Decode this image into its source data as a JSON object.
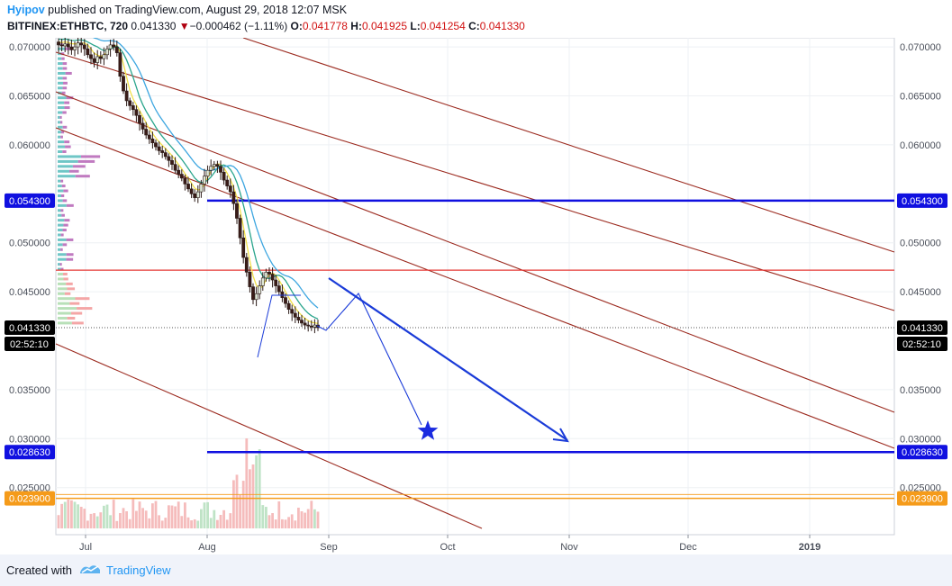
{
  "publish": {
    "author": "Hyipov",
    "text": " published on TradingView.com, August 29, 2018 12:07 MSK"
  },
  "quote": {
    "symbol": "BITFINEX:ETHBTC, 720",
    "last": "0.041330",
    "arrow": "▼",
    "change": "−0.000462 (−1.11%)",
    "open_label": "O:",
    "open": "0.041778",
    "high_label": "H:",
    "high": "0.041925",
    "low_label": "L:",
    "low": "0.041254",
    "close_label": "C:",
    "close": "0.041330"
  },
  "chart_data": {
    "type": "candlestick",
    "symbol": "BITFINEX:ETHBTC",
    "interval": "720",
    "ylim": [
      0.0205,
      0.0713
    ],
    "yticks": [
      "0.070000",
      "0.065000",
      "0.060000",
      "0.050000",
      "0.045000",
      "0.035000",
      "0.030000",
      "0.025000"
    ],
    "xticks": [
      "Jul",
      "Aug",
      "Sep",
      "Oct",
      "Nov",
      "Dec",
      "2019"
    ],
    "price_labels": [
      {
        "value": "0.054300",
        "color": "#1010e0"
      },
      {
        "value": "0.041330",
        "color": "#000000"
      },
      {
        "value": "0.028630",
        "color": "#1010e0"
      },
      {
        "value": "0.023900",
        "color": "#f59b1a"
      }
    ],
    "countdown": "02:52:10",
    "horizontal_levels": [
      {
        "price": 0.0543,
        "color": "#1010e0"
      },
      {
        "price": 0.0472,
        "color": "#e53935"
      },
      {
        "price": 0.02863,
        "color": "#1010e0"
      },
      {
        "price": 0.0239,
        "color": "#f59b1a"
      }
    ],
    "close_series": [
      0.0702,
      0.0701,
      0.0703,
      0.07,
      0.0697,
      0.07,
      0.0704,
      0.0702,
      0.0698,
      0.0692,
      0.0688,
      0.0684,
      0.069,
      0.0688,
      0.0692,
      0.0698,
      0.0702,
      0.07,
      0.0694,
      0.067,
      0.0655,
      0.0645,
      0.064,
      0.0636,
      0.063,
      0.0622,
      0.0616,
      0.061,
      0.0606,
      0.0602,
      0.0598,
      0.0594,
      0.0592,
      0.0588,
      0.0584,
      0.058,
      0.0574,
      0.057,
      0.0566,
      0.056,
      0.0555,
      0.055,
      0.0546,
      0.0552,
      0.056,
      0.0568,
      0.0574,
      0.0578,
      0.058,
      0.0578,
      0.0572,
      0.0564,
      0.0558,
      0.0552,
      0.054,
      0.0525,
      0.0505,
      0.0485,
      0.047,
      0.0455,
      0.0442,
      0.0448,
      0.0456,
      0.0464,
      0.047,
      0.0468,
      0.0462,
      0.0456,
      0.045,
      0.0444,
      0.0438,
      0.0432,
      0.0428,
      0.0424,
      0.0421,
      0.0418,
      0.0416,
      0.0415,
      0.0414,
      0.0416,
      0.04133
    ]
  }
}
